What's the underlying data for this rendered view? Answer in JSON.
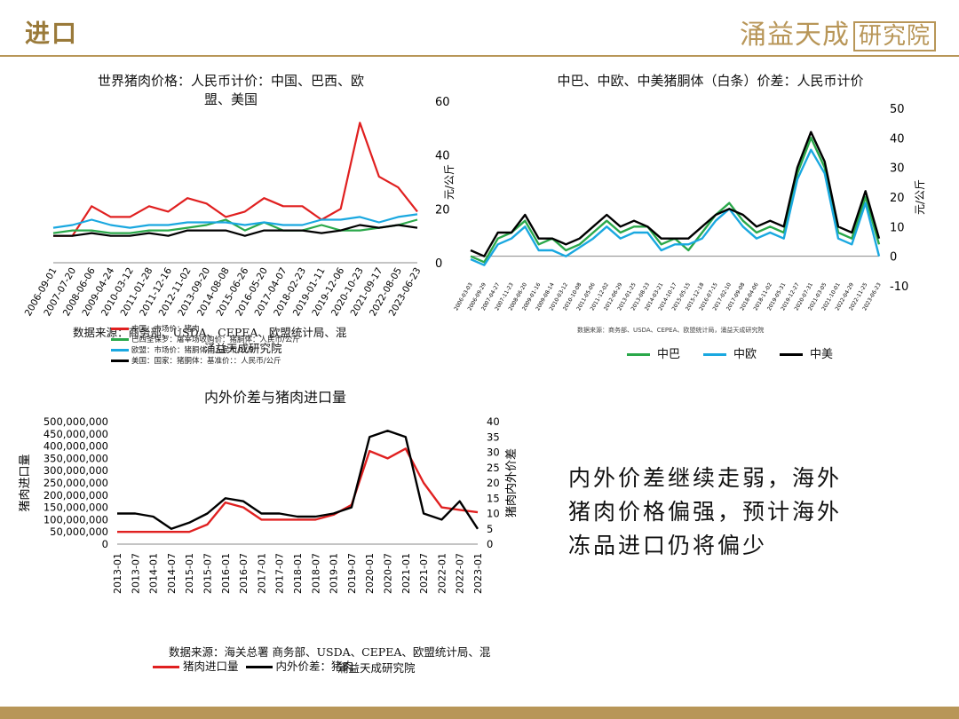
{
  "header": {
    "title": "进口",
    "brand": "涌益天成",
    "brand_box": "研究院"
  },
  "comment": [
    "内外价差继续走弱，海外",
    "猪肉价格偏强，预计海外",
    "冻品进口仍将偏少"
  ],
  "chart1": {
    "title_line1": "世界猪肉价格：人民币计价：中国、巴西、欧",
    "title_line2": "盟、美国",
    "source": "数据来源：商务部、USDA、CEPEA、欧盟统计局、混",
    "source2": "涌益天成研究院",
    "legend": [
      {
        "label": "中国：市场价：猪肉",
        "color": "#e02020"
      },
      {
        "label": "巴西圣保罗：屠宰场收购价：猪胴体：人民币/公斤",
        "color": "#2aa84a"
      },
      {
        "label": "欧盟：市场价：猪胴体：人民币/公斤",
        "color": "#1aa8e0"
      },
      {
        "label": "美国：国家：猪胴体：基准价：：人民币/公斤",
        "color": "#000000"
      }
    ]
  },
  "chart2": {
    "title": "中巴、中欧、中美猪胴体（白条）价差：人民币计价",
    "source": "数据来源：商务部、USDA、CEPEA、欧盟统计局，涌益天成研究院",
    "legend": [
      {
        "label": "中巴",
        "color": "#2aa84a"
      },
      {
        "label": "中欧",
        "color": "#1aa8e0"
      },
      {
        "label": "中美",
        "color": "#000000"
      }
    ]
  },
  "chart3": {
    "title": "内外价差与猪肉进口量",
    "source": "数据来源：海关总署 商务部、USDA、CEPEA、欧盟统计局、混",
    "source2": "涌益天成研究院",
    "legend": [
      {
        "label": "猪肉进口量",
        "color": "#e02020"
      },
      {
        "label": "内外价差：猪肉",
        "color": "#000000"
      }
    ]
  },
  "chart_data": [
    {
      "type": "line",
      "title": "世界猪肉价格：人民币计价：中国、巴西、欧盟、美国",
      "ylabel": "元/公斤",
      "ylim": [
        0,
        60
      ],
      "yticks": [
        0,
        20,
        40,
        60
      ],
      "x": [
        "2006-09-01",
        "2007-07-20",
        "2008-06-06",
        "2009-04-24",
        "2010-03-12",
        "2011-01-28",
        "2011-12-16",
        "2012-11-02",
        "2013-09-20",
        "2014-08-08",
        "2015-06-26",
        "2016-05-20",
        "2017-04-07",
        "2018-02-23",
        "2019-01-11",
        "2019-12-06",
        "2020-10-23",
        "2021-09-17",
        "2022-08-05",
        "2023-06-23"
      ],
      "series": [
        {
          "name": "中国",
          "color": "#e02020",
          "values": [
            10,
            10,
            21,
            17,
            17,
            21,
            19,
            24,
            22,
            17,
            19,
            24,
            21,
            21,
            16,
            20,
            52,
            32,
            28,
            19
          ]
        },
        {
          "name": "巴西",
          "color": "#2aa84a",
          "values": [
            11,
            12,
            12,
            11,
            11,
            12,
            12,
            13,
            14,
            16,
            12,
            15,
            12,
            12,
            14,
            12,
            12,
            13,
            14,
            16
          ]
        },
        {
          "name": "欧盟",
          "color": "#1aa8e0",
          "values": [
            13,
            14,
            16,
            14,
            13,
            14,
            14,
            15,
            15,
            15,
            14,
            15,
            14,
            14,
            16,
            16,
            17,
            15,
            17,
            18
          ]
        },
        {
          "name": "美国",
          "color": "#000000",
          "values": [
            10,
            10,
            11,
            10,
            10,
            11,
            10,
            12,
            12,
            12,
            10,
            12,
            12,
            12,
            11,
            12,
            14,
            13,
            14,
            13
          ]
        }
      ]
    },
    {
      "type": "line",
      "title": "中巴、中欧、中美猪胴体（白条）价差：人民币计价",
      "ylabel": "元/公斤",
      "ylim": [
        -10,
        50
      ],
      "yticks": [
        -10,
        0,
        10,
        20,
        30,
        40,
        50
      ],
      "x": [
        "2006-03-03",
        "2006-09-29",
        "2007-04-27",
        "2007-11-23",
        "2008-06-20",
        "2009-01-16",
        "2009-08-14",
        "2010-03-12",
        "2010-10-08",
        "2011-05-06",
        "2011-12-02",
        "2012-06-29",
        "2013-01-25",
        "2013-08-23",
        "2014-03-21",
        "2014-10-17",
        "2015-05-15",
        "2015-12-18",
        "2016-07-15",
        "2017-02-10",
        "2017-09-08",
        "2018-04-06",
        "2018-11-02",
        "2019-05-31",
        "2019-12-27",
        "2020-07-31",
        "2021-03-05",
        "2021-10-01",
        "2022-04-29",
        "2022-11-25",
        "2023-06-23"
      ],
      "series": [
        {
          "name": "中巴",
          "color": "#2aa84a",
          "values": [
            0,
            -2,
            6,
            8,
            12,
            4,
            6,
            2,
            4,
            8,
            12,
            8,
            10,
            10,
            4,
            6,
            2,
            8,
            14,
            18,
            12,
            8,
            10,
            8,
            28,
            40,
            30,
            8,
            6,
            20,
            4
          ]
        },
        {
          "name": "中欧",
          "color": "#1aa8e0",
          "values": [
            -1,
            -3,
            4,
            6,
            10,
            2,
            2,
            0,
            3,
            6,
            10,
            6,
            8,
            8,
            2,
            4,
            4,
            6,
            12,
            16,
            10,
            6,
            8,
            6,
            26,
            36,
            28,
            6,
            4,
            18,
            0
          ]
        },
        {
          "name": "中美",
          "color": "#000000",
          "values": [
            2,
            0,
            8,
            8,
            14,
            6,
            6,
            4,
            6,
            10,
            14,
            10,
            12,
            10,
            6,
            6,
            6,
            10,
            14,
            16,
            14,
            10,
            12,
            10,
            30,
            42,
            32,
            10,
            8,
            22,
            6
          ]
        }
      ]
    },
    {
      "type": "line",
      "title": "内外价差与猪肉进口量",
      "ylabel_left": "猪肉进口量",
      "ylabel_right": "猪肉内外价差",
      "ylim_left": [
        0,
        500000000
      ],
      "yticks_left": [
        "0",
        "50,000,000",
        "100,000,000",
        "150,000,000",
        "200,000,000",
        "250,000,000",
        "300,000,000",
        "350,000,000",
        "400,000,000",
        "450,000,000",
        "500,000,000"
      ],
      "ylim_right": [
        0,
        40
      ],
      "yticks_right": [
        0,
        5,
        10,
        15,
        20,
        25,
        30,
        35,
        40
      ],
      "x": [
        "2013-01",
        "2013-07",
        "2014-01",
        "2014-07",
        "2015-01",
        "2015-07",
        "2016-01",
        "2016-07",
        "2017-01",
        "2017-07",
        "2018-01",
        "2018-07",
        "2019-01",
        "2019-07",
        "2020-01",
        "2020-07",
        "2021-01",
        "2021-07",
        "2022-01",
        "2022-07",
        "2023-01"
      ],
      "series": [
        {
          "name": "猪肉进口量",
          "color": "#e02020",
          "axis": "left",
          "values": [
            50000000,
            50000000,
            50000000,
            50000000,
            50000000,
            80000000,
            170000000,
            150000000,
            100000000,
            100000000,
            100000000,
            100000000,
            120000000,
            160000000,
            380000000,
            350000000,
            390000000,
            250000000,
            150000000,
            140000000,
            130000000
          ]
        },
        {
          "name": "内外价差",
          "color": "#000000",
          "axis": "right",
          "values": [
            10,
            10,
            9,
            5,
            7,
            10,
            15,
            14,
            10,
            10,
            9,
            9,
            10,
            12,
            35,
            37,
            35,
            10,
            8,
            14,
            5
          ]
        }
      ]
    }
  ]
}
